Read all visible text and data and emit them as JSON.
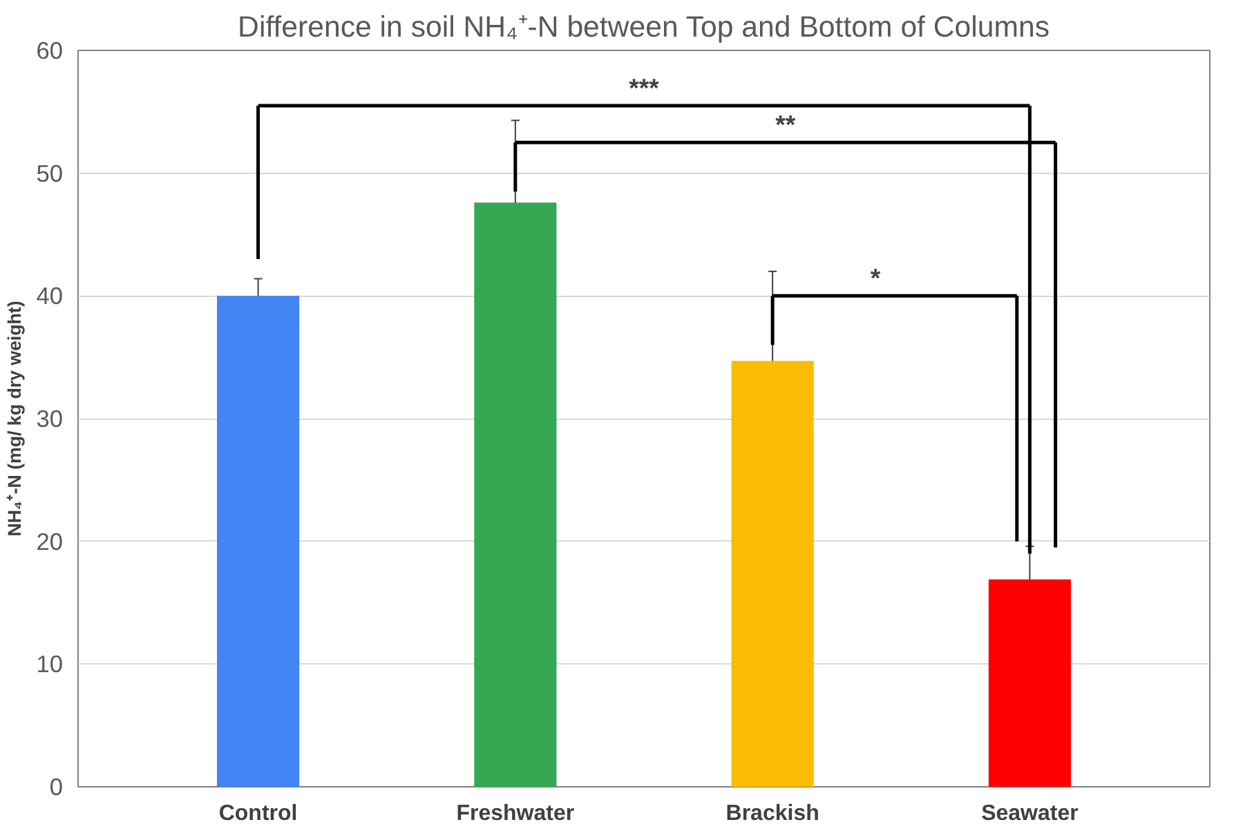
{
  "chart_data": {
    "type": "bar",
    "title": "Difference in soil NH₄⁺-N between Top and Bottom of Columns",
    "ylabel": "NH₄⁺-N (mg/ kg dry weight)",
    "categories": [
      "Control",
      "Freshwater",
      "Brackish",
      "Seawater"
    ],
    "values": [
      40.0,
      47.6,
      34.7,
      16.9
    ],
    "colors": [
      "#4285f4",
      "#34a853",
      "#fbbc04",
      "#ff0000"
    ],
    "errors": [
      1.4,
      6.7,
      7.3,
      2.7
    ],
    "ylim": [
      0,
      60
    ],
    "yticks": [
      0,
      10,
      20,
      30,
      40,
      50,
      60
    ],
    "grid": "y",
    "annotations": [
      "***",
      "**",
      "*"
    ]
  }
}
